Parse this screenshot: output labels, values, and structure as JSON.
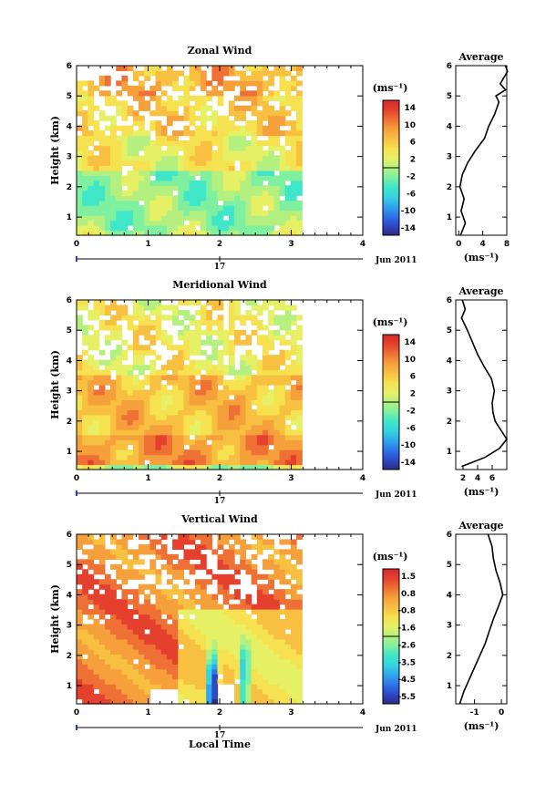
{
  "colorscale": [
    "#2b2d7e",
    "#2e48c8",
    "#2f74e8",
    "#2fa6f0",
    "#37d3e0",
    "#3fe6c8",
    "#7ff0a0",
    "#b4f080",
    "#e6f065",
    "#f6e150",
    "#f8c040",
    "#f5a03a",
    "#ef7035",
    "#e5402e",
    "#d42a2a"
  ],
  "date_label": "Jun 2011",
  "day_label": "17",
  "xlabel": "Local Time",
  "units": "(ms⁻¹)",
  "panels": [
    {
      "title": "Zonal Wind",
      "ylabel": "Height (km)",
      "x_ticks": [
        "0",
        "1",
        "2",
        "3",
        "4"
      ],
      "y_ticks": [
        "1",
        "2",
        "3",
        "4",
        "5",
        "6"
      ],
      "cbar_ticks": [
        "14",
        "10",
        "6",
        "2",
        "-2",
        "-6",
        "-10",
        "-14"
      ],
      "avg_title": "Average",
      "avg_x_ticks": [
        "0",
        "4",
        "8"
      ],
      "avg_y_ticks": [
        "1",
        "2",
        "3",
        "4",
        "5",
        "6"
      ]
    },
    {
      "title": "Meridional Wind",
      "ylabel": "Height (km)",
      "x_ticks": [
        "0",
        "1",
        "2",
        "3",
        "4"
      ],
      "y_ticks": [
        "1",
        "2",
        "3",
        "4",
        "5",
        "6"
      ],
      "cbar_ticks": [
        "14",
        "10",
        "6",
        "2",
        "-2",
        "-6",
        "-10",
        "-14"
      ],
      "avg_title": "Average",
      "avg_x_ticks": [
        "2",
        "4",
        "6"
      ],
      "avg_y_ticks": [
        "1",
        "2",
        "3",
        "4",
        "5",
        "6"
      ]
    },
    {
      "title": "Vertical Wind",
      "ylabel": "Height (km)",
      "x_ticks": [
        "0",
        "1",
        "2",
        "3",
        "4"
      ],
      "y_ticks": [
        "1",
        "2",
        "3",
        "4",
        "5",
        "6"
      ],
      "cbar_ticks": [
        "1.5",
        "0.8",
        "-0.8",
        "-1.6",
        "-2.6",
        "-3.5",
        "-4.5",
        "-5.5"
      ],
      "avg_title": "Average",
      "avg_x_ticks": [
        "-1",
        "0"
      ],
      "avg_y_ticks": [
        "1",
        "2",
        "3",
        "4",
        "5",
        "6"
      ]
    }
  ],
  "chart_data": [
    {
      "type": "heatmap",
      "title": "Zonal Wind",
      "ylabel": "Height (km)",
      "x_range_hours": [
        0,
        4
      ],
      "y_range_km": [
        0.4,
        6
      ],
      "data_extent_hours": [
        0,
        3.15
      ],
      "value_range": [
        -14,
        14
      ],
      "description_of_field": [
        {
          "height_km": [
            0.5,
            2.5
          ],
          "value": -1
        },
        {
          "height_km": [
            2.5,
            3.7
          ],
          "value": 3
        },
        {
          "height_km": [
            3.7,
            5.0
          ],
          "value": 5
        },
        {
          "height_km": [
            5.0,
            6.0
          ],
          "value": 7
        }
      ],
      "average_profile": {
        "x_label": "(ms⁻¹)",
        "x_range": [
          -0.5,
          8
        ],
        "height_km": [
          0.4,
          0.8,
          1.2,
          1.6,
          2.0,
          2.4,
          2.8,
          3.2,
          3.6,
          4.0,
          4.4,
          4.8,
          5.0,
          5.2,
          5.4,
          5.6,
          5.8,
          6.0
        ],
        "value": [
          0.3,
          1.1,
          0.4,
          0.9,
          0.2,
          0.6,
          1.5,
          2.8,
          4.3,
          5.0,
          6.0,
          6.7,
          6.2,
          7.8,
          6.9,
          7.5,
          8.1,
          7.8
        ]
      }
    },
    {
      "type": "heatmap",
      "title": "Meridional Wind",
      "ylabel": "Height (km)",
      "x_range_hours": [
        0,
        4
      ],
      "y_range_km": [
        0.4,
        6
      ],
      "data_extent_hours": [
        0,
        3.15
      ],
      "value_range": [
        -14,
        14
      ],
      "description_of_field": [
        {
          "height_km": [
            0.5,
            1.6
          ],
          "value": 8
        },
        {
          "height_km": [
            1.6,
            3.5
          ],
          "value": 6
        },
        {
          "height_km": [
            3.5,
            6.0
          ],
          "value": 3
        }
      ],
      "average_profile": {
        "x_label": "(ms⁻¹)",
        "x_range": [
          1,
          8
        ],
        "height_km": [
          0.5,
          0.8,
          1.1,
          1.4,
          1.7,
          2.0,
          2.3,
          2.6,
          3.0,
          3.4,
          3.8,
          4.2,
          4.6,
          5.0,
          5.4,
          5.7,
          6.0
        ],
        "value": [
          1.8,
          5.0,
          7.0,
          8.0,
          7.2,
          6.4,
          6.1,
          6.0,
          6.3,
          5.9,
          4.9,
          4.0,
          3.3,
          2.6,
          1.8,
          2.3,
          1.9
        ]
      }
    },
    {
      "type": "heatmap",
      "title": "Vertical Wind",
      "ylabel": "Height (km)",
      "xlabel": "Local Time",
      "x_range_hours": [
        0,
        4
      ],
      "y_range_km": [
        0.4,
        6
      ],
      "data_extent_hours": [
        0,
        3.15
      ],
      "value_range": [
        -5.5,
        1.5
      ],
      "description_of_field": [
        {
          "height_km": [
            0.4,
            6.0
          ],
          "value": 0.3
        },
        {
          "feature": "downdraft",
          "x_hours": [
            1.8,
            2.0
          ],
          "height_km": [
            0.6,
            2.3
          ],
          "value": -5.5
        },
        {
          "feature": "downdraft",
          "x_hours": [
            2.3,
            2.4
          ],
          "height_km": [
            0.6,
            2.5
          ],
          "value": -3
        }
      ],
      "average_profile": {
        "x_label": "(ms⁻¹)",
        "x_range": [
          -1.7,
          0.2
        ],
        "height_km": [
          0.4,
          0.8,
          1.2,
          1.6,
          2.0,
          2.4,
          2.8,
          3.2,
          3.6,
          4.0,
          4.4,
          4.8,
          5.2,
          5.6,
          6.0
        ],
        "value": [
          -1.55,
          -1.4,
          -1.2,
          -1.0,
          -0.8,
          -0.6,
          -0.45,
          -0.3,
          -0.12,
          0.05,
          -0.05,
          -0.2,
          -0.3,
          -0.35,
          -0.5
        ]
      }
    }
  ]
}
